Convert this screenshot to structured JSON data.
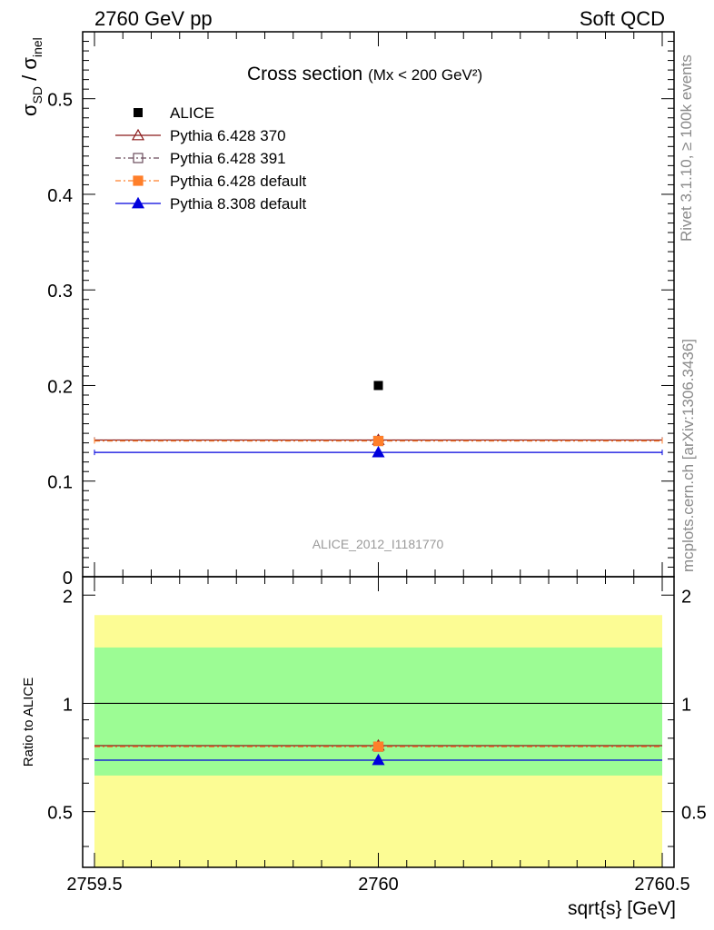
{
  "header": {
    "left": "2760 GeV pp",
    "right": "Soft QCD"
  },
  "side_labels": {
    "rivet": "Rivet 3.1.10, ≥ 100k events",
    "mcplots": "mcplots.cern.ch [arXiv:1306.3436]"
  },
  "chart_data": {
    "type": "scatter",
    "title": "Cross section",
    "title_suffix": "(Mx < 200 GeV²)",
    "analysis_tag": "ALICE_2012_I1181770",
    "ylabel": "σSD / σinel",
    "xlabel": "sqrt{s} [GeV]",
    "xlim": [
      2759.5,
      2760.5
    ],
    "ylim": [
      0,
      0.57
    ],
    "x_ticks": [
      "2759.5",
      "2760",
      "2760.5"
    ],
    "y_ticks": [
      "0",
      "0.1",
      "0.2",
      "0.3",
      "0.4",
      "0.5"
    ],
    "legend_position": "top-left",
    "data": {
      "name": "ALICE",
      "x": 2760,
      "y": 0.2,
      "color": "#000000"
    },
    "series": [
      {
        "name": "Pythia 6.428 370",
        "x": [
          2759.5,
          2760.5
        ],
        "y": [
          0.143,
          0.143
        ],
        "marker_x": 2760,
        "marker_y": 0.143,
        "color": "#8b1a1a",
        "marker": "triangle-open",
        "dash": ""
      },
      {
        "name": "Pythia 6.428 391",
        "x": [
          2759.5,
          2760.5
        ],
        "y": [
          0.142,
          0.142
        ],
        "marker_x": 2760,
        "marker_y": 0.142,
        "color": "#6b4c5c",
        "marker": "square-open",
        "dash": "6,3,2,3"
      },
      {
        "name": "Pythia 6.428 default",
        "x": [
          2759.5,
          2760.5
        ],
        "y": [
          0.142,
          0.142
        ],
        "marker_x": 2760,
        "marker_y": 0.142,
        "color": "#ff7f2a",
        "marker": "square-filled",
        "dash": "6,3,2,3"
      },
      {
        "name": "Pythia 8.308 default",
        "x": [
          2759.5,
          2760.5
        ],
        "y": [
          0.13,
          0.13
        ],
        "marker_x": 2760,
        "marker_y": 0.13,
        "color": "#0000dd",
        "marker": "triangle-filled",
        "dash": ""
      }
    ],
    "ratio": {
      "ylabel": "Ratio to ALICE",
      "ylim": [
        0.35,
        2.25
      ],
      "y_ticks": [
        "0.5",
        "1",
        "2"
      ],
      "band_1sigma": [
        0.63,
        1.43
      ],
      "band_2sigma": [
        0.35,
        1.76
      ],
      "band_colors": {
        "inner": "#9cfc94",
        "outer": "#fcfc94"
      },
      "series": [
        {
          "name": "Pythia 6.428 370",
          "y": 0.763,
          "color": "#8b1a1a",
          "marker": "triangle-open",
          "dash": ""
        },
        {
          "name": "Pythia 6.428 391",
          "y": 0.758,
          "color": "#6b4c5c",
          "marker": "square-open",
          "dash": "6,3,2,3"
        },
        {
          "name": "Pythia 6.428 default",
          "y": 0.758,
          "color": "#ff7f2a",
          "marker": "square-filled",
          "dash": "6,3,2,3"
        },
        {
          "name": "Pythia 8.308 default",
          "y": 0.695,
          "color": "#0000dd",
          "marker": "triangle-filled",
          "dash": ""
        }
      ]
    }
  }
}
